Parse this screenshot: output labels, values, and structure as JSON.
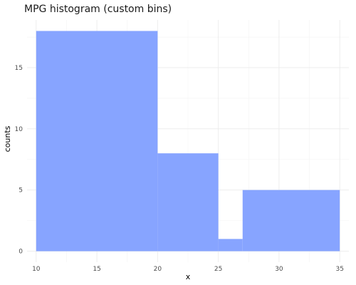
{
  "chart_data": {
    "type": "bar",
    "title": "MPG histogram (custom bins)",
    "xlabel": "x",
    "ylabel": "counts",
    "bins": [
      {
        "x0": 10,
        "x1": 20,
        "count": 18
      },
      {
        "x0": 20,
        "x1": 25,
        "count": 8
      },
      {
        "x0": 25,
        "x1": 27,
        "count": 1
      },
      {
        "x0": 27,
        "x1": 35,
        "count": 5
      }
    ],
    "xticks": [
      10,
      15,
      20,
      25,
      30,
      35
    ],
    "yticks": [
      0,
      5,
      10,
      15
    ],
    "xlim": [
      9.25,
      35.75
    ],
    "ylim": [
      -0.9,
      18.9
    ],
    "grid": true,
    "bar_color": "#87a4ff"
  }
}
